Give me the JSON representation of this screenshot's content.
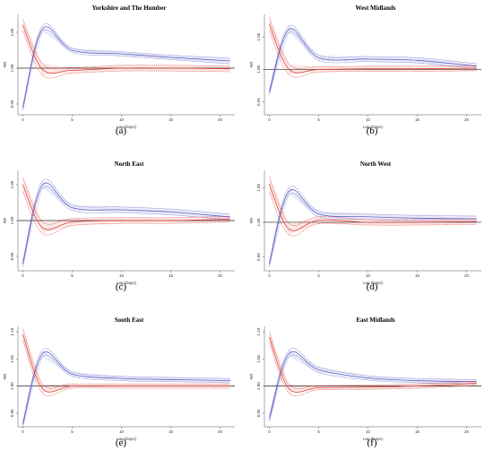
{
  "chart_data": [
    {
      "type": "line",
      "caption": "(a)",
      "title": "Yorkshire and The Humber",
      "xlabel": "Lag (Days)",
      "ylabel": "RR",
      "xlim": [
        -0.5,
        21.5
      ],
      "ylim": [
        0.935,
        1.075
      ],
      "xticks": [
        0,
        5,
        10,
        15,
        20
      ],
      "yticks": [
        0.95,
        1.0,
        1.05
      ],
      "yticklabels": [
        "0.95",
        "1.00",
        "1.05"
      ],
      "reference_y": 1.0,
      "series": [
        {
          "color": "#5b5fc7",
          "x": [
            0,
            2,
            5,
            10,
            15,
            21
          ],
          "values": [
            0.945,
            1.055,
            1.025,
            1.02,
            1.015,
            1.01
          ],
          "upper": [
            0.948,
            1.059,
            1.028,
            1.023,
            1.018,
            1.014
          ],
          "lower": [
            0.942,
            1.051,
            1.022,
            1.017,
            1.012,
            1.006
          ]
        },
        {
          "color": "#e0453a",
          "x": [
            0,
            2,
            5,
            10,
            15,
            21
          ],
          "values": [
            1.06,
            0.998,
            0.997,
            1.0,
            1.0,
            0.999
          ],
          "upper": [
            1.068,
            1.006,
            1.001,
            1.004,
            1.004,
            1.003
          ],
          "lower": [
            1.052,
            0.99,
            0.993,
            0.996,
            0.996,
            0.995
          ]
        }
      ]
    },
    {
      "type": "line",
      "caption": "(b)",
      "title": "West Midlands",
      "xlabel": "Lag (Days)",
      "ylabel": "RR",
      "xlim": [
        -0.5,
        21.5
      ],
      "ylim": [
        0.93,
        1.085
      ],
      "xticks": [
        0,
        5,
        10,
        15,
        20
      ],
      "yticks": [
        0.95,
        1.0,
        1.05
      ],
      "yticklabels": [
        "0.95",
        "1.00",
        "1.05"
      ],
      "reference_y": 1.0,
      "series": [
        {
          "color": "#5b5fc7",
          "x": [
            0,
            2,
            5,
            10,
            15,
            21
          ],
          "values": [
            0.965,
            1.062,
            1.018,
            1.016,
            1.014,
            1.005
          ],
          "upper": [
            0.969,
            1.067,
            1.022,
            1.02,
            1.018,
            1.009
          ],
          "lower": [
            0.961,
            1.057,
            1.014,
            1.012,
            1.01,
            1.001
          ]
        },
        {
          "color": "#e0453a",
          "x": [
            0,
            2,
            5,
            10,
            15,
            21
          ],
          "values": [
            1.07,
            1.0,
            1.0,
            1.001,
            1.001,
            1.002
          ],
          "upper": [
            1.08,
            1.008,
            1.004,
            1.005,
            1.005,
            1.006
          ],
          "lower": [
            1.06,
            0.992,
            0.996,
            0.997,
            0.997,
            0.998
          ]
        }
      ]
    },
    {
      "type": "line",
      "caption": "(c)",
      "title": "North East",
      "xlabel": "Lag (Days)",
      "ylabel": "RR",
      "xlim": [
        -0.5,
        21.5
      ],
      "ylim": [
        0.93,
        1.07
      ],
      "xticks": [
        0,
        5,
        10,
        15,
        20
      ],
      "yticks": [
        0.95,
        1.0,
        1.05
      ],
      "yticklabels": [
        "0.95",
        "1.00",
        "1.05"
      ],
      "reference_y": 1.0,
      "series": [
        {
          "color": "#5b5fc7",
          "x": [
            0,
            2,
            5,
            10,
            15,
            21
          ],
          "values": [
            0.94,
            1.05,
            1.018,
            1.015,
            1.012,
            1.005
          ],
          "upper": [
            0.944,
            1.055,
            1.022,
            1.019,
            1.016,
            1.009
          ],
          "lower": [
            0.936,
            1.045,
            1.014,
            1.011,
            1.008,
            1.001
          ]
        },
        {
          "color": "#e0453a",
          "x": [
            0,
            2,
            5,
            10,
            15,
            21
          ],
          "values": [
            1.05,
            0.99,
            0.998,
            1.0,
            1.0,
            1.002
          ],
          "upper": [
            1.06,
            0.998,
            1.003,
            1.004,
            1.004,
            1.006
          ],
          "lower": [
            1.04,
            0.982,
            0.993,
            0.996,
            0.996,
            0.998
          ]
        }
      ]
    },
    {
      "type": "line",
      "caption": "(d)",
      "title": "North West",
      "xlabel": "Lag (Days)",
      "ylabel": "RR",
      "xlim": [
        -0.5,
        21.5
      ],
      "ylim": [
        0.93,
        1.075
      ],
      "xticks": [
        0,
        5,
        10,
        15,
        20
      ],
      "yticks": [
        0.95,
        1.0,
        1.05
      ],
      "yticklabels": [
        "0.95",
        "1.00",
        "1.05"
      ],
      "reference_y": 1.0,
      "series": [
        {
          "color": "#5b5fc7",
          "x": [
            0,
            2,
            5,
            10,
            15,
            21
          ],
          "values": [
            0.94,
            1.045,
            1.012,
            1.008,
            1.006,
            1.005
          ],
          "upper": [
            0.944,
            1.05,
            1.016,
            1.012,
            1.01,
            1.009
          ],
          "lower": [
            0.936,
            1.04,
            1.008,
            1.004,
            1.002,
            1.001
          ]
        },
        {
          "color": "#e0453a",
          "x": [
            0,
            2,
            5,
            10,
            15,
            21
          ],
          "values": [
            1.055,
            0.99,
            1.003,
            1.0,
            1.0,
            1.001
          ],
          "upper": [
            1.066,
            0.998,
            1.008,
            1.004,
            1.004,
            1.005
          ],
          "lower": [
            1.044,
            0.982,
            0.998,
            0.996,
            0.996,
            0.997
          ]
        }
      ]
    },
    {
      "type": "line",
      "caption": "(e)",
      "title": "South East",
      "xlabel": "Lag (Days)",
      "ylabel": "RR",
      "xlim": [
        -0.5,
        21.5
      ],
      "ylim": [
        0.925,
        1.11
      ],
      "xticks": [
        0,
        5,
        10,
        15,
        20
      ],
      "yticks": [
        0.95,
        1.0,
        1.05,
        1.1
      ],
      "yticklabels": [
        "0.95",
        "1.00",
        "1.05",
        "1.10"
      ],
      "reference_y": 1.0,
      "series": [
        {
          "color": "#5b5fc7",
          "x": [
            0,
            2,
            5,
            10,
            15,
            21
          ],
          "values": [
            0.93,
            1.06,
            1.022,
            1.014,
            1.012,
            1.01
          ],
          "upper": [
            0.935,
            1.066,
            1.026,
            1.018,
            1.016,
            1.014
          ],
          "lower": [
            0.925,
            1.054,
            1.018,
            1.01,
            1.008,
            1.006
          ]
        },
        {
          "color": "#e0453a",
          "x": [
            0,
            2,
            5,
            10,
            15,
            21
          ],
          "values": [
            1.095,
            0.995,
            1.0,
            1.0,
            1.0,
            1.0
          ],
          "upper": [
            1.106,
            1.003,
            1.004,
            1.004,
            1.004,
            1.004
          ],
          "lower": [
            1.084,
            0.987,
            0.996,
            0.996,
            0.996,
            0.996
          ]
        }
      ]
    },
    {
      "type": "line",
      "caption": "(f)",
      "title": "East Midlands",
      "xlabel": "Lag (Days)",
      "ylabel": "RR",
      "xlim": [
        -0.5,
        21.5
      ],
      "ylim": [
        0.925,
        1.11
      ],
      "xticks": [
        0,
        5,
        10,
        15,
        20
      ],
      "yticks": [
        0.95,
        1.0,
        1.05,
        1.1
      ],
      "yticklabels": [
        "0.95",
        "1.00",
        "1.05",
        "1.10"
      ],
      "reference_y": 1.0,
      "series": [
        {
          "color": "#5b5fc7",
          "x": [
            0,
            2,
            5,
            10,
            15,
            21
          ],
          "values": [
            0.94,
            1.06,
            1.03,
            1.015,
            1.01,
            1.008
          ],
          "upper": [
            0.945,
            1.066,
            1.035,
            1.019,
            1.014,
            1.012
          ],
          "lower": [
            0.935,
            1.054,
            1.025,
            1.011,
            1.006,
            1.004
          ]
        },
        {
          "color": "#e0453a",
          "x": [
            0,
            2,
            5,
            10,
            15,
            21
          ],
          "values": [
            1.09,
            0.995,
            0.997,
            0.998,
            1.0,
            1.005
          ],
          "upper": [
            1.1,
            1.003,
            1.001,
            1.002,
            1.004,
            1.009
          ],
          "lower": [
            1.08,
            0.987,
            0.993,
            0.994,
            0.996,
            1.001
          ]
        }
      ]
    }
  ]
}
